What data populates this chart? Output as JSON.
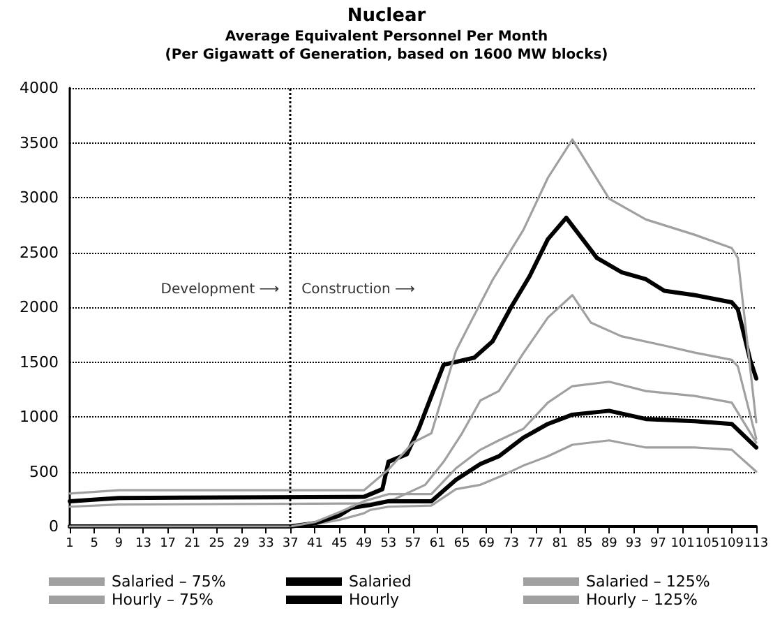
{
  "chart_data": {
    "type": "line",
    "title": "Nuclear",
    "subtitle": "Average Equivalent Personnel Per Month\n(Per Gigawatt of Generation, based on 1600 MW blocks)",
    "annotations": [
      "Development ⟶",
      "Construction ⟶"
    ],
    "xlim": [
      1,
      113
    ],
    "xticks": [
      1,
      5,
      9,
      13,
      17,
      21,
      25,
      29,
      33,
      37,
      41,
      45,
      49,
      53,
      57,
      61,
      65,
      69,
      73,
      77,
      81,
      85,
      89,
      93,
      97,
      101,
      105,
      109,
      113
    ],
    "ylim": [
      0,
      4000
    ],
    "yticks": [
      0,
      500,
      1000,
      1500,
      2000,
      2500,
      3000,
      3500,
      4000
    ],
    "grid": "y",
    "legend": "bottom",
    "marker": "none",
    "line_style": "solid",
    "ref_lines": [
      {
        "axis": "x",
        "value": 37,
        "color": "#000000",
        "line_style": "dotted"
      }
    ],
    "series": [
      {
        "name": "Salaried – 75%",
        "color": "#a0a0a0",
        "x": [
          1,
          9,
          50,
          54,
          59,
          62,
          65,
          68,
          71,
          75,
          79,
          83,
          86,
          91,
          98,
          103,
          109,
          110,
          113
        ],
        "values": [
          180,
          200,
          210,
          250,
          380,
          590,
          850,
          1150,
          1235,
          1580,
          1905,
          2110,
          1860,
          1735,
          1650,
          1585,
          1520,
          1460,
          800
        ]
      },
      {
        "name": "Salaried",
        "color": "#000000",
        "x": [
          1,
          9,
          49,
          52,
          53,
          56,
          58,
          60,
          62,
          67,
          70,
          73,
          76,
          79,
          82,
          87,
          91,
          95,
          98,
          103,
          109,
          110,
          112,
          113
        ],
        "values": [
          230,
          260,
          270,
          340,
          590,
          660,
          900,
          1190,
          1475,
          1540,
          1690,
          2000,
          2280,
          2620,
          2816,
          2450,
          2320,
          2255,
          2150,
          2110,
          2045,
          1980,
          1520,
          1350
        ]
      },
      {
        "name": "Salaried – 125%",
        "color": "#a0a0a0",
        "x": [
          1,
          9,
          49,
          53,
          57,
          60,
          64,
          66,
          70,
          75,
          79,
          83,
          85,
          89,
          95,
          103,
          109,
          110,
          113
        ],
        "values": [
          300,
          330,
          330,
          520,
          765,
          850,
          1600,
          1820,
          2250,
          2705,
          3180,
          3530,
          3350,
          2990,
          2800,
          2660,
          2540,
          2450,
          950
        ]
      },
      {
        "name": "Hourly – 75%",
        "color": "#a0a0a0",
        "x": [
          1,
          37,
          41,
          45,
          49,
          50,
          53,
          60,
          64,
          68,
          71,
          75,
          79,
          83,
          89,
          95,
          103,
          109,
          113
        ],
        "values": [
          0,
          0,
          20,
          60,
          120,
          150,
          180,
          190,
          340,
          380,
          450,
          555,
          640,
          745,
          785,
          720,
          720,
          700,
          500
        ]
      },
      {
        "name": "Hourly",
        "color": "#000000",
        "x": [
          1,
          37,
          41,
          45,
          47,
          50,
          53,
          60,
          64,
          68,
          71,
          75,
          79,
          83,
          89,
          95,
          103,
          109,
          113
        ],
        "values": [
          0,
          0,
          30,
          100,
          170,
          195,
          230,
          230,
          425,
          570,
          640,
          810,
          935,
          1020,
          1055,
          980,
          960,
          935,
          720
        ]
      },
      {
        "name": "Hourly – 125%",
        "color": "#a0a0a0",
        "x": [
          1,
          37,
          41,
          45,
          49,
          53,
          60,
          64,
          68,
          71,
          75,
          79,
          83,
          89,
          95,
          103,
          109,
          113
        ],
        "values": [
          0,
          0,
          40,
          130,
          230,
          295,
          295,
          530,
          700,
          785,
          890,
          1130,
          1280,
          1320,
          1235,
          1190,
          1130,
          765
        ]
      }
    ]
  }
}
